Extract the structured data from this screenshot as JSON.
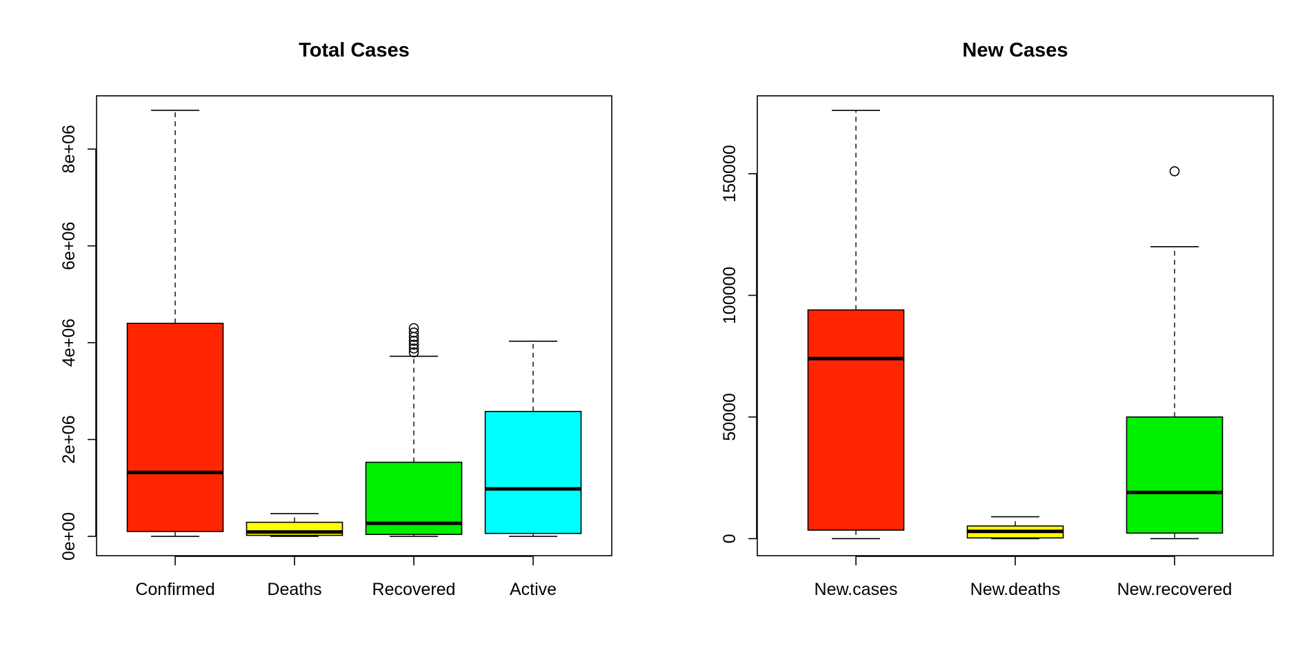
{
  "chart_data": [
    {
      "type": "boxplot",
      "title": "Total Cases",
      "xlabel": "",
      "ylabel": "",
      "ylim": [
        -400000,
        9100000
      ],
      "yticks": [
        {
          "value": 0,
          "label": "0e+00"
        },
        {
          "value": 2000000,
          "label": "2e+06"
        },
        {
          "value": 4000000,
          "label": "4e+06"
        },
        {
          "value": 6000000,
          "label": "6e+06"
        },
        {
          "value": 8000000,
          "label": "8e+06"
        }
      ],
      "categories": [
        "Confirmed",
        "Deaths",
        "Recovered",
        "Active"
      ],
      "boxes": [
        {
          "name": "Confirmed",
          "color": "#ff2500",
          "whisker_low": 0,
          "q1": 100000,
          "median": 1320000,
          "q3": 4400000,
          "whisker_high": 8800000,
          "outliers": []
        },
        {
          "name": "Deaths",
          "color": "#ffff00",
          "whisker_low": 0,
          "q1": 20000,
          "median": 90000,
          "q3": 290000,
          "whisker_high": 470000,
          "outliers": []
        },
        {
          "name": "Recovered",
          "color": "#00f000",
          "whisker_low": 0,
          "q1": 40000,
          "median": 270000,
          "q3": 1530000,
          "whisker_high": 3720000,
          "outliers": [
            3800000,
            3880000,
            3960000,
            4040000,
            4120000,
            4210000,
            4300000
          ]
        },
        {
          "name": "Active",
          "color": "#00ffff",
          "whisker_low": 0,
          "q1": 60000,
          "median": 980000,
          "q3": 2580000,
          "whisker_high": 4030000,
          "outliers": []
        }
      ]
    },
    {
      "type": "boxplot",
      "title": "New Cases",
      "xlabel": "",
      "ylabel": "",
      "ylim": [
        -7000,
        182000
      ],
      "yticks": [
        {
          "value": 0,
          "label": "0"
        },
        {
          "value": 50000,
          "label": "50000"
        },
        {
          "value": 100000,
          "label": "100000"
        },
        {
          "value": 150000,
          "label": "150000"
        }
      ],
      "categories": [
        "New.cases",
        "New.deaths",
        "New.recovered"
      ],
      "boxes": [
        {
          "name": "New.cases",
          "color": "#ff2500",
          "whisker_low": 0,
          "q1": 3500,
          "median": 74000,
          "q3": 94000,
          "whisker_high": 176000,
          "outliers": []
        },
        {
          "name": "New.deaths",
          "color": "#ffff00",
          "whisker_low": 0,
          "q1": 300,
          "median": 3000,
          "q3": 5200,
          "whisker_high": 9000,
          "outliers": []
        },
        {
          "name": "New.recovered",
          "color": "#00f000",
          "whisker_low": 0,
          "q1": 2300,
          "median": 19000,
          "q3": 50000,
          "whisker_high": 120000,
          "outliers": [
            151000
          ]
        }
      ]
    }
  ]
}
